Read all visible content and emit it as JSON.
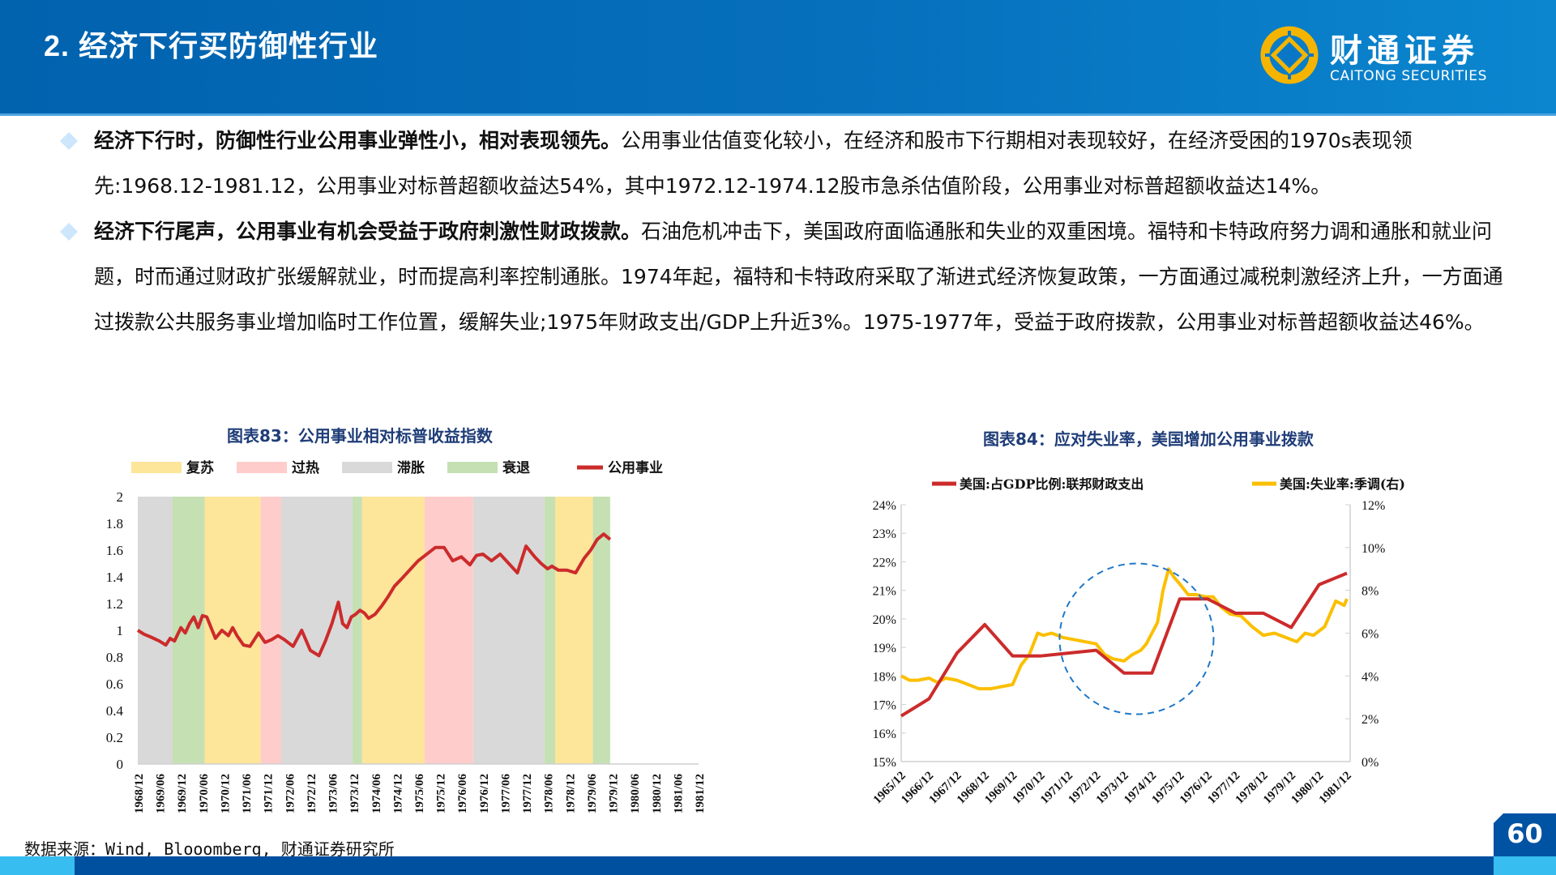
{
  "header": {
    "title": "2. 经济下行买防御性行业",
    "logo_cn": "财通证券",
    "logo_en": "CAITONG SECURITIES",
    "colors": {
      "header_bg": "#0670bd",
      "logo_gold": "#f5b400"
    }
  },
  "bullets": [
    {
      "bold": "经济下行时，防御性行业公用事业弹性小，相对表现领先。",
      "text": "公用事业估值变化较小，在经济和股市下行期相对表现较好，在经济受困的1970s表现领先:1968.12-1981.12，公用事业对标普超额收益达54%，其中1972.12-1974.12股市急杀估值阶段，公用事业对标普超额收益达14%。"
    },
    {
      "bold": "经济下行尾声，公用事业有机会受益于政府刺激性财政拨款。",
      "text": "石油危机冲击下，美国政府面临通胀和失业的双重困境。福特和卡特政府努力调和通胀和就业问题，时而通过财政扩张缓解就业，时而提高利率控制通胀。1974年起，福特和卡特政府采取了渐进式经济恢复政策，一方面通过减税刺激经济上升，一方面通过拨款公共服务事业增加临时工作位置，缓解失业;1975年财政支出/GDP上升近3%。1975-1977年，受益于政府拨款，公用事业对标普超额收益达46%。"
    }
  ],
  "source": "数据来源：Wind，Bloomberg，财通证券研究所",
  "source_display": "数据来源：Wind, Blooomberg, 财通证券研究所",
  "page_number": "60",
  "chart_data": [
    {
      "type": "line",
      "title": "图表83：公用事业相对标普收益指数",
      "legend": [
        {
          "name": "复苏",
          "color": "#fde59a",
          "kind": "area"
        },
        {
          "name": "过热",
          "color": "#ffcccc",
          "kind": "area"
        },
        {
          "name": "滞胀",
          "color": "#d9d9d9",
          "kind": "area"
        },
        {
          "name": "衰退",
          "color": "#c5e0b3",
          "kind": "area"
        },
        {
          "name": "公用事业",
          "color": "#cc2b2b",
          "kind": "line"
        }
      ],
      "legend_position": "top",
      "ylim": [
        0,
        2
      ],
      "yticks": [
        "0",
        "0.2",
        "0.4",
        "0.6",
        "0.8",
        "1",
        "1.2",
        "1.4",
        "1.6",
        "1.8",
        "2"
      ],
      "xticks": [
        "1968/12",
        "1969/06",
        "1969/12",
        "1970/06",
        "1970/12",
        "1971/06",
        "1971/12",
        "1972/06",
        "1972/12",
        "1973/06",
        "1973/12",
        "1974/06",
        "1974/12",
        "1975/06",
        "1975/12",
        "1976/06",
        "1976/12",
        "1977/06",
        "1977/12",
        "1978/06",
        "1978/12",
        "1979/06",
        "1979/12",
        "1980/06",
        "1980/12",
        "1981/06",
        "1981/12"
      ],
      "phases": [
        {
          "phase": "滞胀",
          "start": 0.0,
          "end": 1.6
        },
        {
          "phase": "衰退",
          "start": 1.6,
          "end": 3.1
        },
        {
          "phase": "复苏",
          "start": 3.1,
          "end": 5.7
        },
        {
          "phase": "过热",
          "start": 5.7,
          "end": 6.65
        },
        {
          "phase": "滞胀",
          "start": 6.65,
          "end": 9.95
        },
        {
          "phase": "衰退",
          "start": 9.95,
          "end": 10.4
        },
        {
          "phase": "复苏",
          "start": 10.4,
          "end": 13.3
        },
        {
          "phase": "过热",
          "start": 13.3,
          "end": 15.55
        },
        {
          "phase": "滞胀",
          "start": 15.55,
          "end": 18.85
        },
        {
          "phase": "衰退",
          "start": 18.85,
          "end": 19.35
        },
        {
          "phase": "复苏",
          "start": 19.35,
          "end": 21.1
        },
        {
          "phase": "衰退",
          "start": 21.1,
          "end": 21.9
        }
      ],
      "series": [
        {
          "name": "公用事业",
          "x": [
            0,
            0.3,
            0.6,
            1.0,
            1.3,
            1.5,
            1.7,
            2.0,
            2.2,
            2.4,
            2.6,
            2.8,
            3.0,
            3.2,
            3.4,
            3.6,
            3.9,
            4.2,
            4.4,
            4.6,
            4.9,
            5.2,
            5.6,
            5.9,
            6.2,
            6.5,
            6.8,
            7.2,
            7.6,
            8.0,
            8.4,
            8.7,
            9.0,
            9.3,
            9.5,
            9.7,
            9.9,
            10.1,
            10.3,
            10.5,
            10.7,
            11.0,
            11.3,
            11.6,
            11.9,
            12.2,
            12.6,
            13.0,
            13.4,
            13.8,
            14.2,
            14.6,
            15.0,
            15.4,
            15.7,
            16.0,
            16.4,
            16.8,
            17.2,
            17.6,
            18.0,
            18.4,
            18.7,
            19.0,
            19.2,
            19.5,
            19.9,
            20.3,
            20.7,
            21.0,
            21.3,
            21.6,
            21.9
          ],
          "values": [
            1.0,
            0.97,
            0.95,
            0.92,
            0.89,
            0.94,
            0.92,
            1.02,
            0.98,
            1.05,
            1.1,
            1.02,
            1.11,
            1.1,
            1.02,
            0.94,
            1.0,
            0.96,
            1.02,
            0.96,
            0.89,
            0.88,
            0.98,
            0.91,
            0.93,
            0.96,
            0.93,
            0.88,
            1.0,
            0.85,
            0.81,
            0.92,
            1.05,
            1.21,
            1.05,
            1.02,
            1.1,
            1.12,
            1.15,
            1.13,
            1.09,
            1.12,
            1.18,
            1.25,
            1.33,
            1.38,
            1.45,
            1.52,
            1.57,
            1.62,
            1.62,
            1.52,
            1.55,
            1.49,
            1.56,
            1.57,
            1.52,
            1.57,
            1.5,
            1.43,
            1.63,
            1.55,
            1.5,
            1.46,
            1.48,
            1.45,
            1.45,
            1.43,
            1.54,
            1.6,
            1.68,
            1.72,
            1.68
          ]
        }
      ]
    },
    {
      "type": "line",
      "title": "图表84：应对失业率，美国增加公用事业拨款",
      "legend": [
        {
          "name": "美国:占GDP比例:联邦财政支出",
          "color": "#cc2b2b",
          "axis": "left"
        },
        {
          "name": "美国:失业率:季调(右)",
          "color": "#fbbf00",
          "axis": "right"
        }
      ],
      "legend_position": "top",
      "ylim_left": [
        0.15,
        0.24
      ],
      "yticks_left": [
        "15%",
        "16%",
        "17%",
        "18%",
        "19%",
        "20%",
        "21%",
        "22%",
        "23%",
        "24%"
      ],
      "ylim_right": [
        0,
        0.12
      ],
      "yticks_right": [
        "0%",
        "2%",
        "4%",
        "6%",
        "8%",
        "10%",
        "12%"
      ],
      "xticks": [
        "1965/12",
        "1966/12",
        "1967/12",
        "1968/12",
        "1969/12",
        "1970/12",
        "1971/12",
        "1972/12",
        "1973/12",
        "1974/12",
        "1975/12",
        "1976/12",
        "1977/12",
        "1978/12",
        "1979/12",
        "1980/12",
        "1981/12"
      ],
      "annotation": {
        "type": "dashed-circle",
        "color": "#1f78c8",
        "around": "1973/12-1976/06"
      },
      "series": [
        {
          "name": "美国:占GDP比例:联邦财政支出",
          "x": [
            0,
            1,
            2,
            3,
            4,
            5,
            6,
            7,
            8,
            9,
            10,
            11,
            12,
            13,
            14,
            15,
            16
          ],
          "values": [
            0.166,
            0.172,
            0.188,
            0.198,
            0.187,
            0.187,
            0.188,
            0.189,
            0.181,
            0.181,
            0.207,
            0.207,
            0.202,
            0.202,
            0.197,
            0.212,
            0.216
          ]
        },
        {
          "name": "美国:失业率:季调(右)",
          "x": [
            0,
            0.3,
            0.6,
            1.0,
            1.3,
            1.6,
            2.0,
            2.4,
            2.8,
            3.2,
            3.6,
            4.0,
            4.3,
            4.6,
            4.9,
            5.1,
            5.4,
            5.8,
            6.2,
            6.6,
            7.0,
            7.3,
            7.6,
            8.0,
            8.3,
            8.6,
            8.8,
            9.0,
            9.2,
            9.4,
            9.6,
            9.8,
            10.0,
            10.3,
            10.6,
            10.9,
            11.2,
            11.5,
            11.8,
            12.2,
            12.6,
            13.0,
            13.4,
            13.8,
            14.2,
            14.5,
            14.8,
            15.2,
            15.6,
            15.9,
            16.0
          ],
          "values": [
            0.04,
            0.038,
            0.038,
            0.039,
            0.037,
            0.039,
            0.038,
            0.036,
            0.034,
            0.034,
            0.035,
            0.036,
            0.045,
            0.05,
            0.06,
            0.059,
            0.06,
            0.058,
            0.057,
            0.056,
            0.055,
            0.05,
            0.048,
            0.047,
            0.05,
            0.052,
            0.055,
            0.06,
            0.065,
            0.08,
            0.09,
            0.086,
            0.083,
            0.078,
            0.078,
            0.077,
            0.077,
            0.072,
            0.069,
            0.068,
            0.063,
            0.059,
            0.06,
            0.058,
            0.056,
            0.06,
            0.059,
            0.063,
            0.075,
            0.073,
            0.076
          ]
        }
      ]
    }
  ]
}
